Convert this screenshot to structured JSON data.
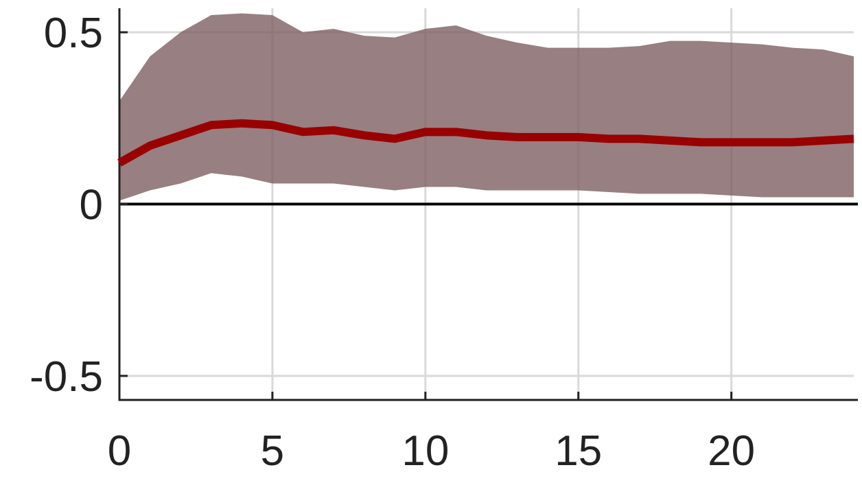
{
  "chart_data": {
    "type": "line",
    "title": "",
    "xlabel": "",
    "ylabel": "",
    "xlim": [
      0,
      24
    ],
    "ylim": [
      -0.57,
      0.57
    ],
    "x_ticks": [
      0,
      5,
      10,
      15,
      20
    ],
    "x_tick_labels": [
      "0",
      "5",
      "10",
      "15",
      "20"
    ],
    "y_ticks": [
      -0.5,
      0,
      0.5
    ],
    "y_tick_labels": [
      "-0.5",
      "0",
      "0.5"
    ],
    "grid": true,
    "zero_line": true,
    "x": [
      0,
      1,
      2,
      3,
      4,
      5,
      6,
      7,
      8,
      9,
      10,
      11,
      12,
      13,
      14,
      15,
      16,
      17,
      18,
      19,
      20,
      21,
      22,
      23,
      24
    ],
    "series": [
      {
        "values": [
          0.12,
          0.17,
          0.2,
          0.23,
          0.235,
          0.23,
          0.21,
          0.215,
          0.2,
          0.19,
          0.21,
          0.21,
          0.2,
          0.195,
          0.195,
          0.195,
          0.19,
          0.19,
          0.185,
          0.18,
          0.18,
          0.18,
          0.18,
          0.185,
          0.19
        ],
        "lower": [
          0.01,
          0.04,
          0.06,
          0.09,
          0.08,
          0.06,
          0.06,
          0.06,
          0.05,
          0.04,
          0.05,
          0.05,
          0.04,
          0.04,
          0.04,
          0.04,
          0.035,
          0.03,
          0.03,
          0.03,
          0.025,
          0.02,
          0.02,
          0.02,
          0.02
        ],
        "upper": [
          0.3,
          0.43,
          0.5,
          0.55,
          0.555,
          0.55,
          0.5,
          0.51,
          0.49,
          0.485,
          0.51,
          0.52,
          0.49,
          0.47,
          0.455,
          0.455,
          0.455,
          0.46,
          0.475,
          0.475,
          0.47,
          0.465,
          0.455,
          0.45,
          0.43
        ],
        "line_color": "#990000",
        "band_color": "#7b5b5e"
      }
    ]
  }
}
